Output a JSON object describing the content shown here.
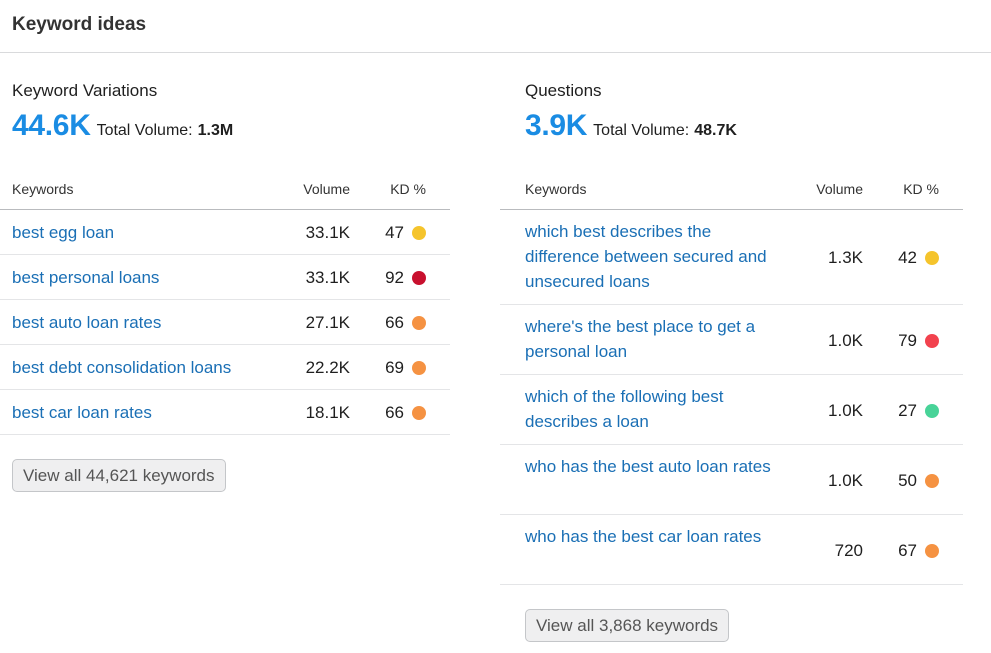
{
  "header": {
    "title": "Keyword ideas"
  },
  "variations": {
    "title": "Keyword Variations",
    "count": "44.6K",
    "volume_label": "Total Volume:",
    "volume_value": "1.3M",
    "columns": {
      "keyword": "Keywords",
      "volume": "Volume",
      "kd": "KD %"
    },
    "rows": [
      {
        "keyword": "best egg loan",
        "volume": "33.1K",
        "kd": "47",
        "kd_color": "#f5c42c"
      },
      {
        "keyword": "best personal loans",
        "volume": "33.1K",
        "kd": "92",
        "kd_color": "#c8102e"
      },
      {
        "keyword": "best auto loan rates",
        "volume": "27.1K",
        "kd": "66",
        "kd_color": "#f59242"
      },
      {
        "keyword": "best debt consolidation loans",
        "volume": "22.2K",
        "kd": "69",
        "kd_color": "#f59242"
      },
      {
        "keyword": "best car loan rates",
        "volume": "18.1K",
        "kd": "66",
        "kd_color": "#f59242"
      }
    ],
    "view_all": "View all 44,621 keywords"
  },
  "questions": {
    "title": "Questions",
    "count": "3.9K",
    "volume_label": "Total Volume:",
    "volume_value": "48.7K",
    "columns": {
      "keyword": "Keywords",
      "volume": "Volume",
      "kd": "KD %"
    },
    "rows": [
      {
        "keyword": "which best describes the difference between secured and unsecured loans",
        "volume": "1.3K",
        "kd": "42",
        "kd_color": "#f5c42c"
      },
      {
        "keyword": "where's the best place to get a personal loan",
        "volume": "1.0K",
        "kd": "79",
        "kd_color": "#f2424e"
      },
      {
        "keyword": "which of the following best describes a loan",
        "volume": "1.0K",
        "kd": "27",
        "kd_color": "#48d398"
      },
      {
        "keyword": "who has the best auto loan rates",
        "volume": "1.0K",
        "kd": "50",
        "kd_color": "#f59242"
      },
      {
        "keyword": "who has the best car loan rates",
        "volume": "720",
        "kd": "67",
        "kd_color": "#f59242"
      }
    ],
    "view_all": "View all 3,868 keywords"
  }
}
